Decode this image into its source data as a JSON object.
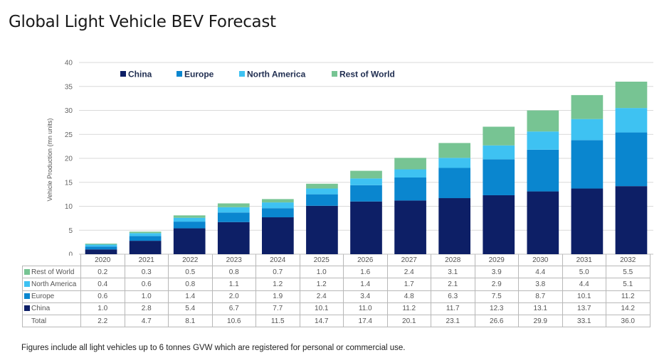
{
  "title": "Global Light Vehicle BEV Forecast",
  "footnote": "Figures include all light vehicles up to 6 tonnes GVW which are registered for personal or commercial use.",
  "table": {
    "total_label": "Total",
    "rows": [
      {
        "label": "Rest of World",
        "color": "#77c493",
        "values": [
          "0.2",
          "0.3",
          "0.5",
          "0.8",
          "0.7",
          "1.0",
          "1.6",
          "2.4",
          "3.1",
          "3.9",
          "4.4",
          "5.0",
          "5.5"
        ]
      },
      {
        "label": "North America",
        "color": "#3ec2f2",
        "values": [
          "0.4",
          "0.6",
          "0.8",
          "1.1",
          "1.2",
          "1.2",
          "1.4",
          "1.7",
          "2.1",
          "2.9",
          "3.8",
          "4.4",
          "5.1"
        ]
      },
      {
        "label": "Europe",
        "color": "#0a86cf",
        "values": [
          "0.6",
          "1.0",
          "1.4",
          "2.0",
          "1.9",
          "2.4",
          "3.4",
          "4.8",
          "6.3",
          "7.5",
          "8.7",
          "10.1",
          "11.2"
        ]
      },
      {
        "label": "China",
        "color": "#0d1f66",
        "values": [
          "1.0",
          "2.8",
          "5.4",
          "6.7",
          "7.7",
          "10.1",
          "11.0",
          "11.2",
          "11.7",
          "12.3",
          "13.1",
          "13.7",
          "14.2"
        ]
      }
    ],
    "totals": [
      "2.2",
      "4.7",
      "8.1",
      "10.6",
      "11.5",
      "14.7",
      "17.4",
      "20.1",
      "23.1",
      "26.6",
      "29.9",
      "33.1",
      "36.0"
    ]
  },
  "chart_data": {
    "type": "bar",
    "stacked": true,
    "title": "Global Light Vehicle BEV Forecast",
    "xlabel": "",
    "ylabel": "Vehicle Production (mn units)",
    "ylim": [
      0,
      40
    ],
    "yticks": [
      0,
      5,
      10,
      15,
      20,
      25,
      30,
      35,
      40
    ],
    "grid": true,
    "legend_position": "top-left",
    "categories": [
      "2020",
      "2021",
      "2022",
      "2023",
      "2024",
      "2025",
      "2026",
      "2027",
      "2028",
      "2029",
      "2030",
      "2031",
      "2032"
    ],
    "series": [
      {
        "name": "China",
        "color": "#0d1f66",
        "values": [
          1.0,
          2.8,
          5.4,
          6.7,
          7.7,
          10.1,
          11.0,
          11.2,
          11.7,
          12.3,
          13.1,
          13.7,
          14.2
        ]
      },
      {
        "name": "Europe",
        "color": "#0a86cf",
        "values": [
          0.6,
          1.0,
          1.4,
          2.0,
          1.9,
          2.4,
          3.4,
          4.8,
          6.3,
          7.5,
          8.7,
          10.1,
          11.2
        ]
      },
      {
        "name": "North America",
        "color": "#3ec2f2",
        "values": [
          0.4,
          0.6,
          0.8,
          1.1,
          1.2,
          1.2,
          1.4,
          1.7,
          2.1,
          2.9,
          3.8,
          4.4,
          5.1
        ]
      },
      {
        "name": "Rest of World",
        "color": "#77c493",
        "values": [
          0.2,
          0.3,
          0.5,
          0.8,
          0.7,
          1.0,
          1.6,
          2.4,
          3.1,
          3.9,
          4.4,
          5.0,
          5.5
        ]
      }
    ],
    "totals": [
      2.2,
      4.7,
      8.1,
      10.6,
      11.5,
      14.7,
      17.4,
      20.1,
      23.1,
      26.6,
      29.9,
      33.1,
      36.0
    ]
  }
}
